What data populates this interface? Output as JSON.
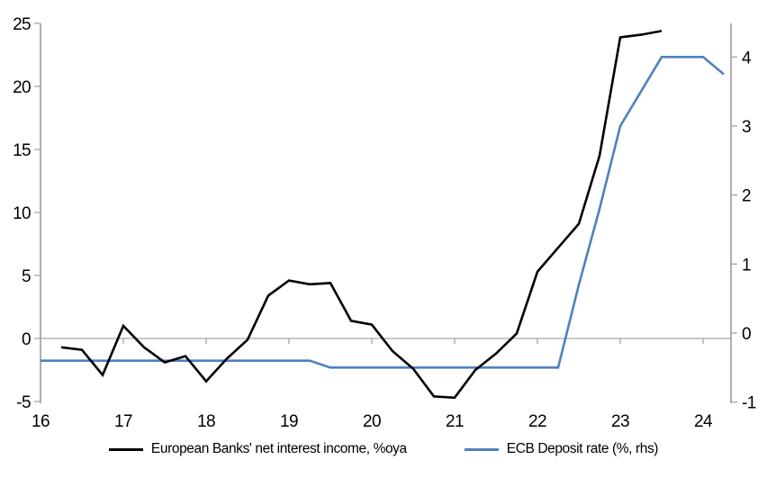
{
  "chart_data": {
    "type": "line",
    "title": "",
    "subtitle": "",
    "grid": "zero-line-only",
    "legend_position": "bottom",
    "x_axis": {
      "label": "",
      "ticks": [
        "16",
        "17",
        "18",
        "19",
        "20",
        "21",
        "22",
        "23",
        "24"
      ],
      "range": [
        16,
        24.33
      ]
    },
    "left_y_axis": {
      "label": "",
      "ticks": [
        -5,
        0,
        5,
        10,
        15,
        20,
        25
      ],
      "range": [
        -5,
        25
      ]
    },
    "right_y_axis": {
      "label": "",
      "ticks": [
        -1,
        0,
        1,
        2,
        3,
        4
      ],
      "range": [
        -1,
        4.5
      ]
    },
    "series": [
      {
        "name": "European Banks' net interest income, %oya",
        "axis": "left",
        "color": "#000000",
        "points": [
          [
            16.25,
            -0.7
          ],
          [
            16.5,
            -0.9
          ],
          [
            16.75,
            -2.9
          ],
          [
            17.0,
            1.0
          ],
          [
            17.25,
            -0.7
          ],
          [
            17.5,
            -1.9
          ],
          [
            17.75,
            -1.4
          ],
          [
            18.0,
            -3.4
          ],
          [
            18.25,
            -1.6
          ],
          [
            18.5,
            -0.1
          ],
          [
            18.75,
            3.4
          ],
          [
            19.0,
            4.6
          ],
          [
            19.25,
            4.3
          ],
          [
            19.5,
            4.4
          ],
          [
            19.75,
            1.4
          ],
          [
            20.0,
            1.1
          ],
          [
            20.25,
            -1.0
          ],
          [
            20.5,
            -2.4
          ],
          [
            20.75,
            -4.6
          ],
          [
            21.0,
            -4.7
          ],
          [
            21.25,
            -2.5
          ],
          [
            21.5,
            -1.2
          ],
          [
            21.75,
            0.4
          ],
          [
            22.0,
            5.3
          ],
          [
            22.25,
            7.2
          ],
          [
            22.5,
            9.1
          ],
          [
            22.75,
            14.5
          ],
          [
            23.0,
            23.9
          ],
          [
            23.25,
            24.1
          ],
          [
            23.5,
            24.4
          ]
        ]
      },
      {
        "name": "ECB Deposit rate (%, rhs)",
        "axis": "right",
        "color": "#4F81BD",
        "points": [
          [
            16.0,
            -0.4
          ],
          [
            19.25,
            -0.4
          ],
          [
            19.5,
            -0.5
          ],
          [
            22.25,
            -0.5
          ],
          [
            22.5,
            0.7
          ],
          [
            22.75,
            1.8
          ],
          [
            23.0,
            3.0
          ],
          [
            23.25,
            3.5
          ],
          [
            23.5,
            4.0
          ],
          [
            23.75,
            4.0
          ],
          [
            24.0,
            4.0
          ],
          [
            24.25,
            3.75
          ]
        ]
      }
    ]
  },
  "colors": {
    "axis": "#A6A6A6",
    "background": "#FFFFFF",
    "nii_line": "#000000",
    "ecb_line": "#4F81BD"
  }
}
